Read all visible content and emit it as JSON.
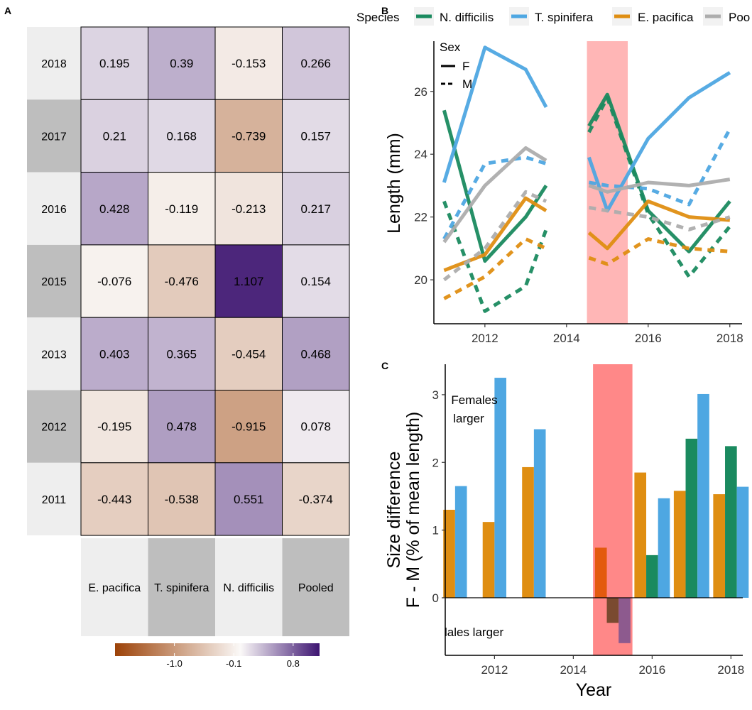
{
  "panels": {
    "a": "A",
    "b": "B",
    "c": "C"
  },
  "chart_data": [
    {
      "panel": "A",
      "type": "heatmap",
      "rows": [
        "2018",
        "2017",
        "2016",
        "2015",
        "2013",
        "2012",
        "2011"
      ],
      "columns": [
        "E. pacifica",
        "T. spinifera",
        "N. difficilis",
        "Pooled"
      ],
      "values": [
        [
          0.195,
          0.39,
          -0.153,
          0.266
        ],
        [
          0.21,
          0.168,
          -0.739,
          0.157
        ],
        [
          0.428,
          -0.119,
          -0.213,
          0.217
        ],
        [
          -0.076,
          -0.476,
          1.107,
          0.154
        ],
        [
          0.403,
          0.365,
          -0.454,
          0.468
        ],
        [
          -0.195,
          0.478,
          -0.915,
          0.078
        ],
        [
          -0.443,
          -0.538,
          0.551,
          -0.374
        ]
      ],
      "value_labels": [
        [
          "0.195",
          "0.39",
          "-0.153",
          "0.266"
        ],
        [
          "0.21",
          "0.168",
          "-0.739",
          "0.157"
        ],
        [
          "0.428",
          "-0.119",
          "-0.213",
          "0.217"
        ],
        [
          "-0.076",
          "-0.476",
          "1.107",
          "0.154"
        ],
        [
          "0.403",
          "0.365",
          "-0.454",
          "0.468"
        ],
        [
          "-0.195",
          "0.478",
          "-0.915",
          "0.078"
        ],
        [
          "-0.443",
          "-0.538",
          "0.551",
          "-0.374"
        ]
      ],
      "colorbar": {
        "range": [
          -1.9,
          1.2
        ],
        "ticks": [
          -1.0,
          -0.1,
          0.8
        ],
        "tick_labels": [
          "-1.0",
          "-0.1",
          "0.8"
        ],
        "colors": {
          "low": "#9c4208",
          "mid": "#fbf9f8",
          "high": "#3d1471"
        }
      }
    },
    {
      "panel": "B",
      "type": "line",
      "ylabel": "Length (mm)",
      "xlim": [
        2010.75,
        2018.3
      ],
      "ylim": [
        18.6,
        27.6
      ],
      "x_ticks": [
        2012,
        2014,
        2016,
        2018
      ],
      "y_ticks": [
        20,
        22,
        24,
        26
      ],
      "highlight": {
        "x0": 2014.5,
        "x1": 2015.5,
        "color": "#ffb6b6"
      },
      "legend_species": {
        "title": "Species",
        "items": [
          {
            "label": "N. difficilis",
            "color": "#1a8a5f"
          },
          {
            "label": "T. spinifera",
            "color": "#4ea7e2"
          },
          {
            "label": "E. pacifica",
            "color": "#df8e12"
          },
          {
            "label": "Poo",
            "color": "#adadad"
          }
        ]
      },
      "legend_sex": {
        "title": "Sex",
        "items": [
          {
            "label": "F",
            "style": "solid"
          },
          {
            "label": "M",
            "style": "dashed"
          }
        ]
      },
      "series": [
        {
          "species": "N. difficilis",
          "sex": "F",
          "color": "#1a8a5f",
          "segments": [
            [
              [
                2011,
                25.4
              ],
              [
                2012,
                20.6
              ],
              [
                2013,
                22.0
              ],
              [
                2013.5,
                23.0
              ]
            ],
            [
              [
                2014.55,
                24.9
              ],
              [
                2015,
                25.9
              ],
              [
                2016,
                22.2
              ],
              [
                2017,
                20.9
              ],
              [
                2018,
                22.5
              ]
            ]
          ]
        },
        {
          "species": "N. difficilis",
          "sex": "M",
          "color": "#1a8a5f",
          "segments": [
            [
              [
                2011,
                22.5
              ],
              [
                2012,
                19.0
              ],
              [
                2013,
                19.8
              ],
              [
                2013.5,
                21.6
              ]
            ],
            [
              [
                2014.55,
                24.7
              ],
              [
                2015,
                25.8
              ],
              [
                2016,
                22.1
              ],
              [
                2017,
                20.1
              ],
              [
                2018,
                21.7
              ]
            ]
          ]
        },
        {
          "species": "T. spinifera",
          "sex": "F",
          "color": "#4ea7e2",
          "segments": [
            [
              [
                2011,
                23.1
              ],
              [
                2012,
                27.4
              ],
              [
                2013,
                26.7
              ],
              [
                2013.5,
                25.5
              ]
            ],
            [
              [
                2014.55,
                23.9
              ],
              [
                2015,
                22.2
              ],
              [
                2016,
                24.5
              ],
              [
                2017,
                25.8
              ],
              [
                2018,
                26.6
              ]
            ]
          ]
        },
        {
          "species": "T. spinifera",
          "sex": "M",
          "color": "#4ea7e2",
          "segments": [
            [
              [
                2011,
                21.3
              ],
              [
                2012,
                23.7
              ],
              [
                2013,
                23.9
              ],
              [
                2013.5,
                23.7
              ]
            ],
            [
              [
                2014.55,
                23.1
              ],
              [
                2015,
                23.0
              ],
              [
                2016,
                22.9
              ],
              [
                2017,
                22.4
              ],
              [
                2018,
                24.8
              ]
            ]
          ]
        },
        {
          "species": "E. pacifica",
          "sex": "F",
          "color": "#df8e12",
          "segments": [
            [
              [
                2011,
                20.3
              ],
              [
                2012,
                20.8
              ],
              [
                2013,
                22.6
              ],
              [
                2013.5,
                22.2
              ]
            ],
            [
              [
                2014.55,
                21.5
              ],
              [
                2015,
                21.0
              ],
              [
                2016,
                22.5
              ],
              [
                2017,
                22.0
              ],
              [
                2018,
                21.9
              ]
            ]
          ]
        },
        {
          "species": "E. pacifica",
          "sex": "M",
          "color": "#df8e12",
          "segments": [
            [
              [
                2011,
                19.4
              ],
              [
                2012,
                20.1
              ],
              [
                2013,
                21.3
              ],
              [
                2013.5,
                21.0
              ]
            ],
            [
              [
                2014.55,
                20.7
              ],
              [
                2015,
                20.5
              ],
              [
                2016,
                21.3
              ],
              [
                2017,
                21.0
              ],
              [
                2018,
                20.9
              ]
            ]
          ]
        },
        {
          "species": "Poo",
          "sex": "F",
          "color": "#adadad",
          "segments": [
            [
              [
                2011,
                21.2
              ],
              [
                2012,
                23.0
              ],
              [
                2013,
                24.2
              ],
              [
                2013.5,
                23.8
              ]
            ],
            [
              [
                2014.55,
                23.0
              ],
              [
                2015,
                22.8
              ],
              [
                2016,
                23.1
              ],
              [
                2017,
                23.0
              ],
              [
                2018,
                23.2
              ]
            ]
          ]
        },
        {
          "species": "Poo",
          "sex": "M",
          "color": "#adadad",
          "segments": [
            [
              [
                2011,
                20.0
              ],
              [
                2012,
                21.0
              ],
              [
                2013,
                22.8
              ],
              [
                2013.5,
                22.5
              ]
            ],
            [
              [
                2014.55,
                22.3
              ],
              [
                2015,
                22.2
              ],
              [
                2016,
                22.0
              ],
              [
                2017,
                21.6
              ],
              [
                2018,
                22.0
              ]
            ]
          ]
        }
      ]
    },
    {
      "panel": "C",
      "type": "bar",
      "xlabel": "Year",
      "ylabel_line1": "Size difference",
      "ylabel_line2": "F - M (% of mean length)",
      "xlim": [
        2010.75,
        2018.3
      ],
      "ylim": [
        -0.85,
        3.45
      ],
      "x_ticks": [
        2012,
        2014,
        2016,
        2018
      ],
      "y_ticks": [
        0,
        1,
        2,
        3
      ],
      "highlight": {
        "x0": 2014.5,
        "x1": 2015.5,
        "color": "#ff8888"
      },
      "annotations": {
        "females_line1": "Females",
        "females_line2": "larger",
        "males": "lales larger"
      },
      "bar_width": 0.3,
      "bars": [
        {
          "x": 2011,
          "offset": -0.5,
          "value": 1.3,
          "species": "E. pacifica",
          "color": "#df8e12"
        },
        {
          "x": 2011,
          "offset": 0.5,
          "value": 1.65,
          "species": "T. spinifera",
          "color": "#4ea7e2"
        },
        {
          "x": 2012,
          "offset": -0.5,
          "value": 1.12,
          "species": "E. pacifica",
          "color": "#df8e12"
        },
        {
          "x": 2012,
          "offset": 0.5,
          "value": 3.25,
          "species": "T. spinifera",
          "color": "#4ea7e2"
        },
        {
          "x": 2013,
          "offset": -0.5,
          "value": 1.93,
          "species": "E. pacifica",
          "color": "#df8e12"
        },
        {
          "x": 2013,
          "offset": 0.5,
          "value": 2.49,
          "species": "T. spinifera",
          "color": "#4ea7e2"
        },
        {
          "x": 2015,
          "offset": -1,
          "value": 0.74,
          "species": "E. pacifica",
          "color": "#e35a0e"
        },
        {
          "x": 2015,
          "offset": 0,
          "value": -0.37,
          "species": "N. difficilis",
          "color": "#7a4a30"
        },
        {
          "x": 2015,
          "offset": 1,
          "value": -0.67,
          "species": "T. spinifera",
          "color": "#8d5a8e"
        },
        {
          "x": 2016,
          "offset": -1,
          "value": 1.85,
          "species": "E. pacifica",
          "color": "#df8e12"
        },
        {
          "x": 2016,
          "offset": 0,
          "value": 0.63,
          "species": "N. difficilis",
          "color": "#1a8a5f"
        },
        {
          "x": 2016,
          "offset": 1,
          "value": 1.47,
          "species": "T. spinifera",
          "color": "#4ea7e2"
        },
        {
          "x": 2017,
          "offset": -1,
          "value": 1.58,
          "species": "E. pacifica",
          "color": "#df8e12"
        },
        {
          "x": 2017,
          "offset": 0,
          "value": 2.35,
          "species": "N. difficilis",
          "color": "#1a8a5f"
        },
        {
          "x": 2017,
          "offset": 1,
          "value": 3.01,
          "species": "T. spinifera",
          "color": "#4ea7e2"
        },
        {
          "x": 2018,
          "offset": -1,
          "value": 1.53,
          "species": "E. pacifica",
          "color": "#df8e12"
        },
        {
          "x": 2018,
          "offset": 0,
          "value": 2.24,
          "species": "N. difficilis",
          "color": "#1a8a5f"
        },
        {
          "x": 2018,
          "offset": 1,
          "value": 1.64,
          "species": "T. spinifera",
          "color": "#4ea7e2"
        }
      ]
    }
  ]
}
